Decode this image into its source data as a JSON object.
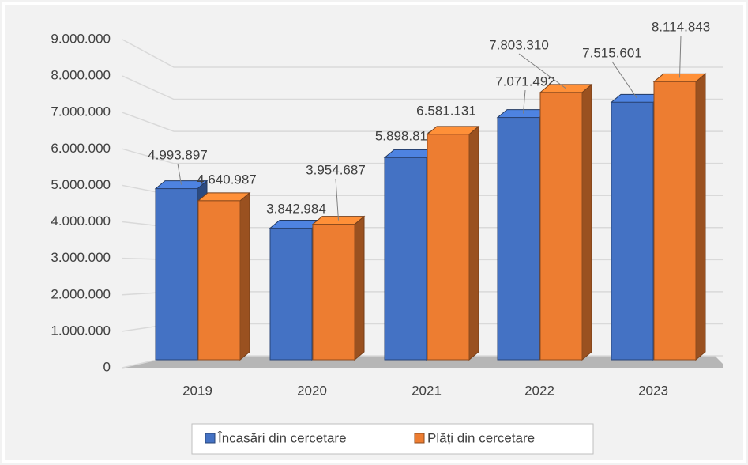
{
  "chart_data": {
    "type": "bar3d",
    "categories": [
      "2019",
      "2020",
      "2021",
      "2022",
      "2023"
    ],
    "series": [
      {
        "name": "Încasări din cercetare",
        "color": "#4472c4",
        "values": [
          4993897,
          3842984,
          5898811,
          7071492,
          7515601
        ],
        "value_labels": [
          "4.993.897",
          "3.842.984",
          "5.898.811",
          "7.071.492",
          "7.515.601"
        ]
      },
      {
        "name": "Plăți din cercetare",
        "color": "#ed7d31",
        "values": [
          4640987,
          3954687,
          6581131,
          7803310,
          8114843
        ],
        "value_labels": [
          "4.640.987",
          "3.954.687",
          "6.581.131",
          "7.803.310",
          "8.114.843"
        ]
      }
    ],
    "ylim": [
      0,
      9000000
    ],
    "yticks": [
      0,
      {
        "value": 1000000,
        "label": "1.000.000"
      },
      {
        "value": 2000000,
        "label": "2.000.000"
      },
      {
        "value": 3000000,
        "label": "3.000.000"
      },
      {
        "value": 4000000,
        "label": "4.000.000"
      },
      {
        "value": 5000000,
        "label": "5.000.000"
      },
      {
        "value": 6000000,
        "label": "6.000.000"
      },
      {
        "value": 7000000,
        "label": "7.000.000"
      },
      {
        "value": 8000000,
        "label": "8.000.000"
      },
      {
        "value": 9000000,
        "label": "9.000.000"
      }
    ],
    "grid": true,
    "legend": "bottom"
  }
}
